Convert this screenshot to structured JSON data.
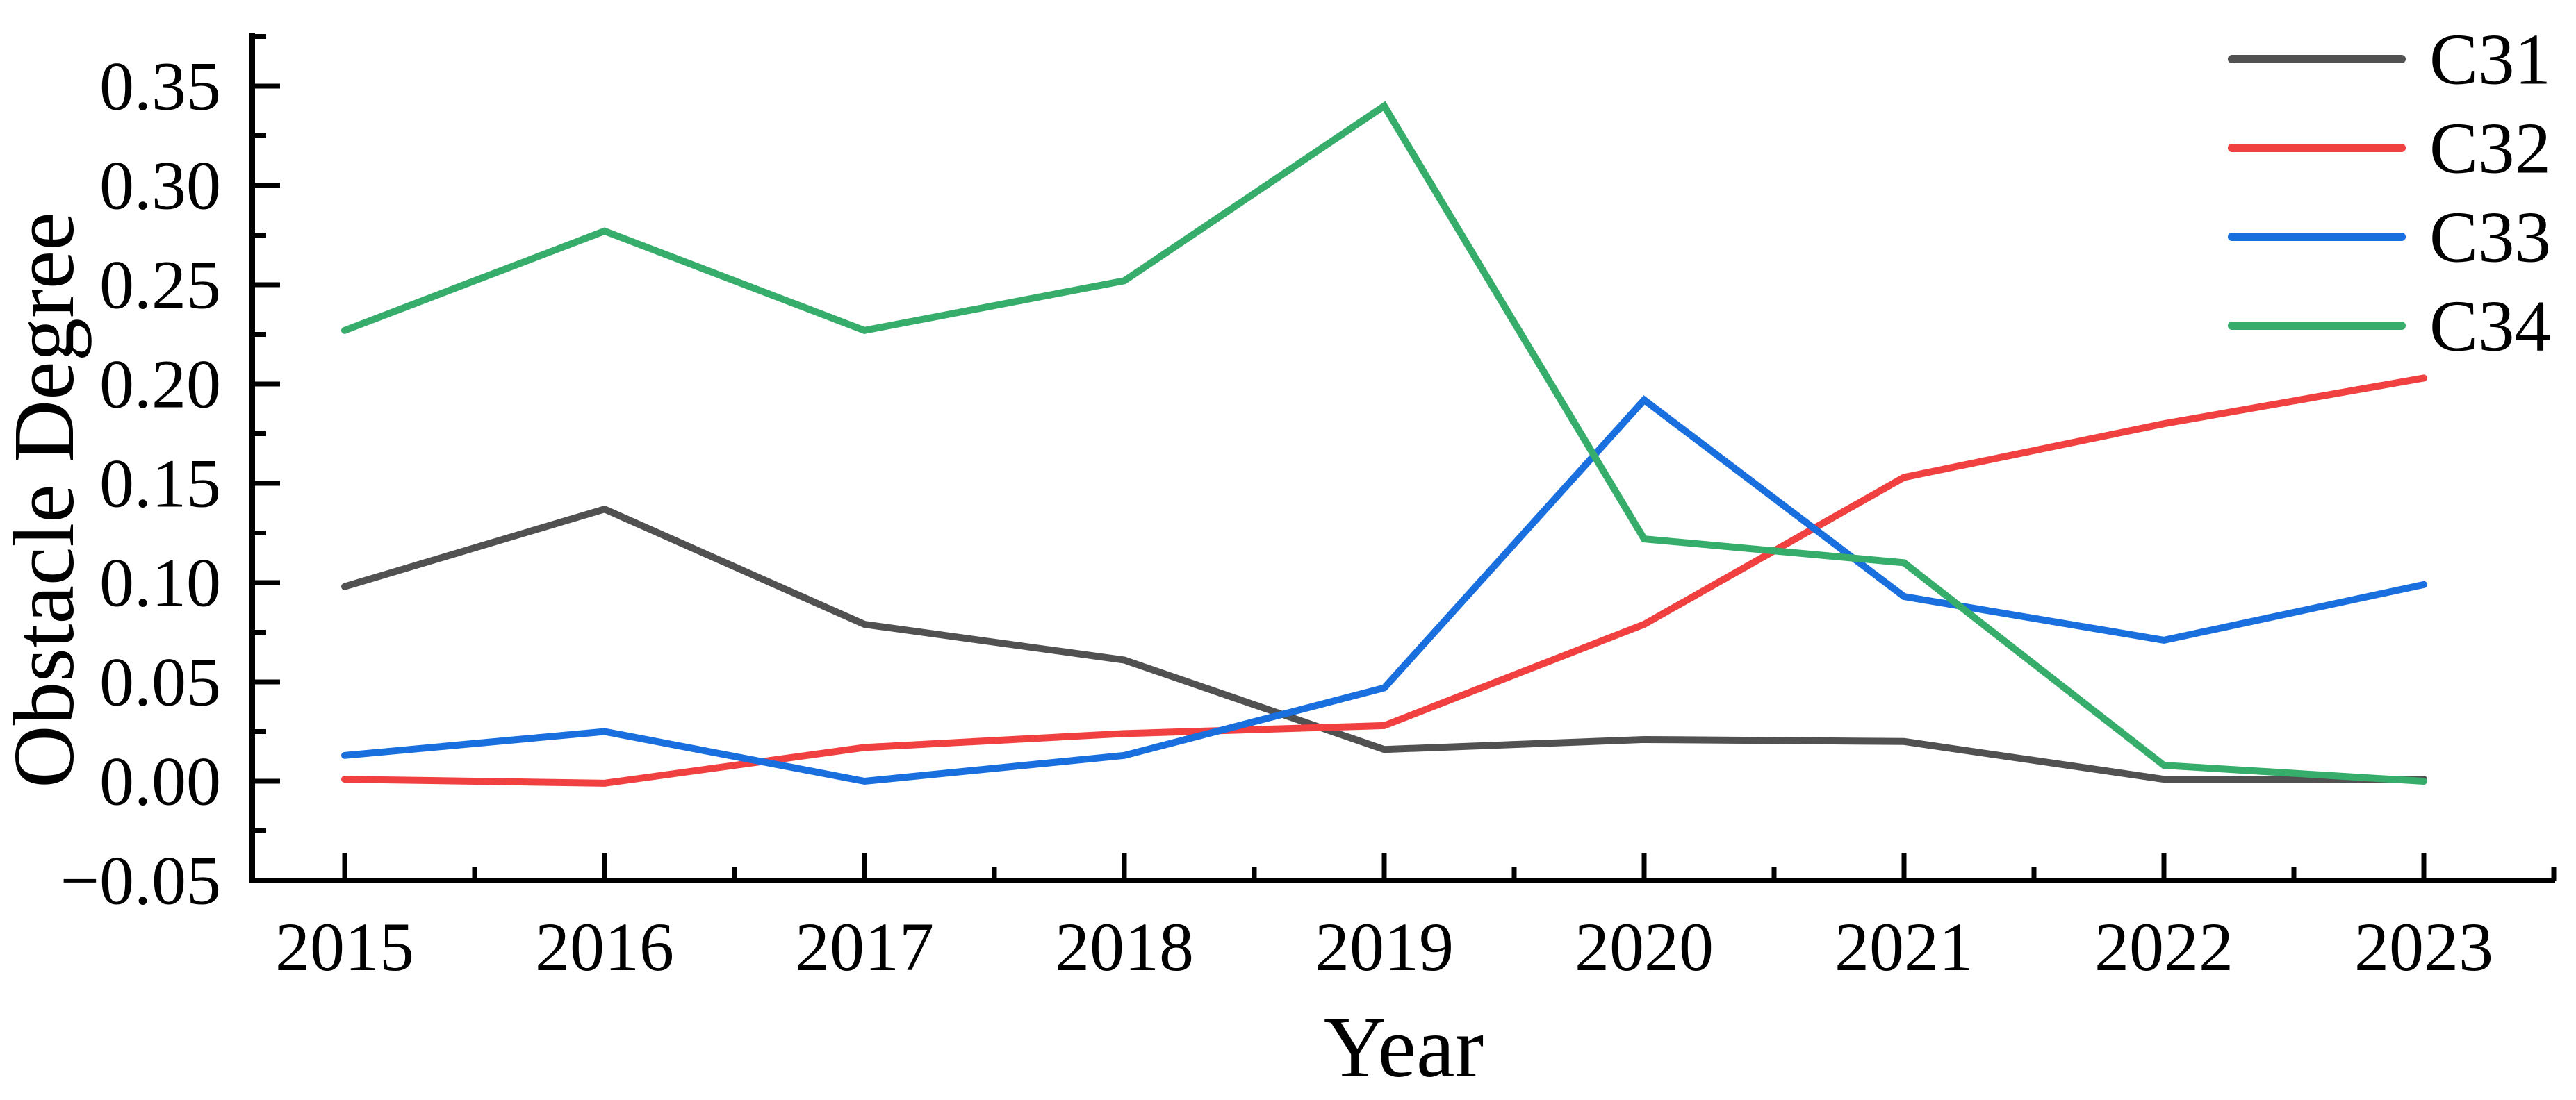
{
  "figure": {
    "background": "#ffffff",
    "axis_color": "#000000"
  },
  "chart_data": {
    "type": "line",
    "title": "",
    "xlabel": "Year",
    "ylabel": "Obstacle Degree",
    "x": [
      2015,
      2016,
      2017,
      2018,
      2019,
      2020,
      2021,
      2022,
      2023
    ],
    "x_tick_labels": [
      "2015",
      "2016",
      "2017",
      "2018",
      "2019",
      "2020",
      "2021",
      "2022",
      "2023"
    ],
    "series": [
      {
        "name": "C31",
        "color": "#515151",
        "values": [
          0.098,
          0.137,
          0.079,
          0.061,
          0.016,
          0.021,
          0.02,
          0.001,
          0.001
        ]
      },
      {
        "name": "C32",
        "color": "#F14040",
        "values": [
          0.001,
          -0.001,
          0.017,
          0.024,
          0.028,
          0.079,
          0.153,
          0.18,
          0.203
        ]
      },
      {
        "name": "C33",
        "color": "#1A6FDF",
        "values": [
          0.013,
          0.025,
          0.0,
          0.013,
          0.047,
          0.192,
          0.093,
          0.071,
          0.099
        ]
      },
      {
        "name": "C34",
        "color": "#37AD6B",
        "values": [
          0.227,
          0.277,
          0.227,
          0.252,
          0.34,
          0.122,
          0.11,
          0.008,
          0.0
        ]
      }
    ],
    "ylim": [
      -0.05,
      0.35
    ],
    "y_major_step": 0.05,
    "y_minor_step": 0.025,
    "x_minor_step": 0.5,
    "y_tick_labels": [
      "−0.05",
      "0.00",
      "0.05",
      "0.10",
      "0.15",
      "0.20",
      "0.25",
      "0.30",
      "0.35"
    ],
    "grid": false,
    "legend": {
      "position": "top-right",
      "entries": [
        "C31",
        "C32",
        "C33",
        "C34"
      ]
    }
  }
}
